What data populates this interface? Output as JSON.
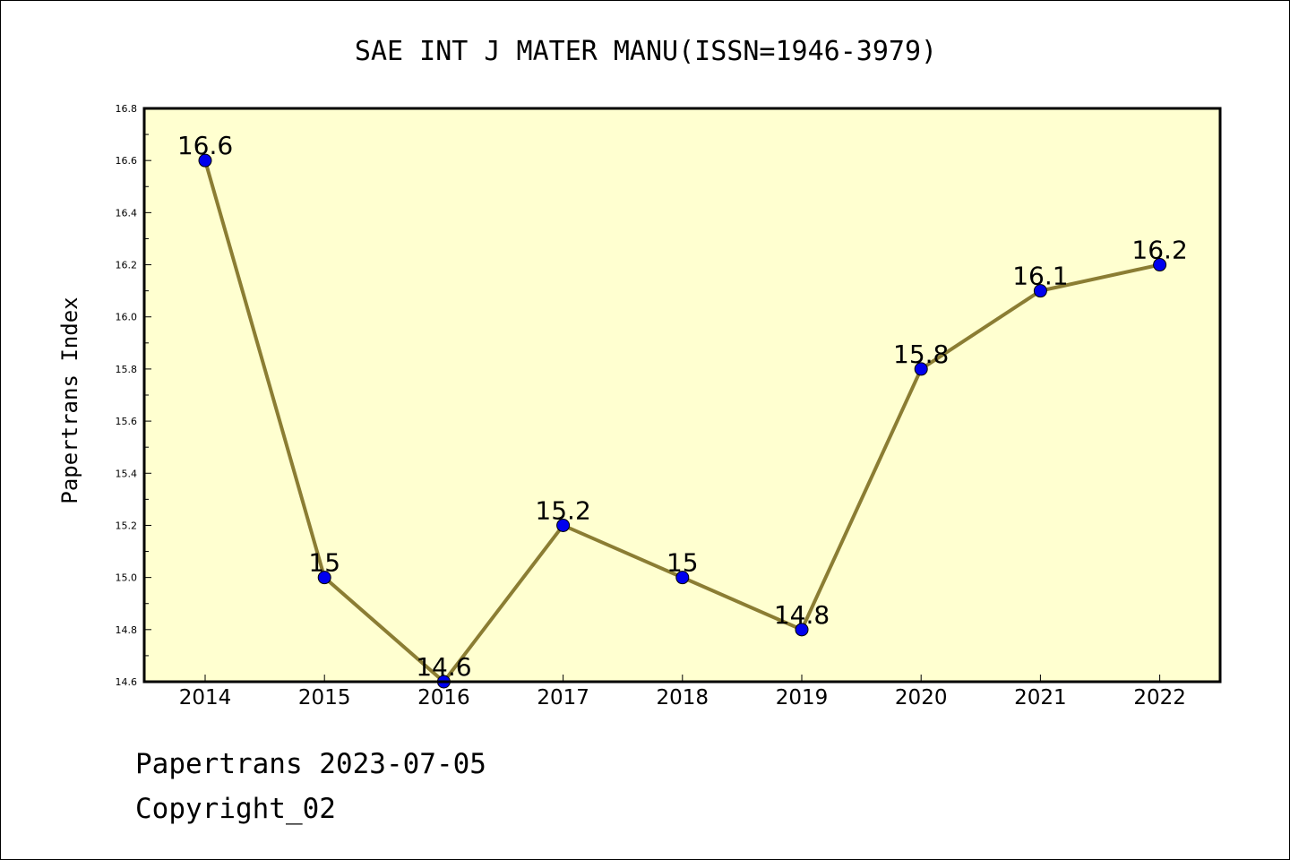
{
  "chart_data": {
    "type": "line",
    "title": "SAE INT J MATER MANU(ISSN=1946-3979)",
    "xlabel": "",
    "ylabel": "Papertrans Index",
    "categories": [
      "2014",
      "2015",
      "2016",
      "2017",
      "2018",
      "2019",
      "2020",
      "2021",
      "2022"
    ],
    "values": [
      16.6,
      15.0,
      14.6,
      15.2,
      15.0,
      14.8,
      15.8,
      16.1,
      16.2
    ],
    "data_labels": [
      "16.6",
      "15",
      "14.6",
      "15.2",
      "15",
      "14.8",
      "15.8",
      "16.1",
      "16.2"
    ],
    "ylim": [
      14.6,
      16.8
    ],
    "yticks": [
      "14.6",
      "14.8",
      "15.0",
      "15.2",
      "15.4",
      "15.6",
      "15.8",
      "16.0",
      "16.2",
      "16.4",
      "16.6",
      "16.8"
    ],
    "grid": false,
    "legend": "none",
    "colors": {
      "plot_background": "#ffffd0",
      "line": "#8b7d33",
      "marker": "#0000ee"
    }
  },
  "footer": {
    "date_line": "Papertrans 2023-07-05",
    "copyright": "Copyright_02"
  }
}
